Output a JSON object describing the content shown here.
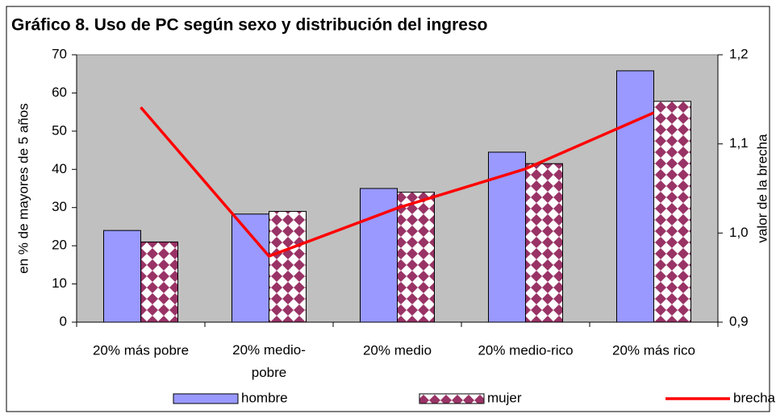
{
  "chart_data": {
    "type": "bar_line",
    "title": "Gráfico 8. Uso de PC según sexo y distribución del ingreso",
    "ylabel": "en % de mayores de 5 años",
    "y2label": "valor de la brecha",
    "categories": [
      "20% más pobre",
      "20% medio-pobre",
      "20% medio",
      "20% medio-rico",
      "20% más rico"
    ],
    "series": [
      {
        "name": "hombre",
        "color": "#9999ff",
        "type": "bar",
        "values": [
          24,
          28.3,
          35,
          44.5,
          65.8
        ]
      },
      {
        "name": "mujer",
        "color": "#993366",
        "type": "bar",
        "pattern": "diamond",
        "values": [
          21,
          29,
          34,
          41.5,
          57.8
        ]
      },
      {
        "name": "brecha",
        "color": "#ff0000",
        "type": "line",
        "axis": "y2",
        "values": [
          1.141,
          0.974,
          1.028,
          1.072,
          1.135
        ]
      }
    ],
    "ylim": [
      0,
      70
    ],
    "yticks": [
      0,
      10,
      20,
      30,
      40,
      50,
      60,
      70
    ],
    "y2lim": [
      0.9,
      1.2
    ],
    "y2ticks": [
      {
        "value": 0.9,
        "label": "0,9"
      },
      {
        "value": 1.0,
        "label": "1,0"
      },
      {
        "value": 1.1,
        "label": "1,1"
      },
      {
        "value": 1.2,
        "label": "1,2"
      }
    ],
    "plot_background": "#c0c0c0",
    "legend": "bottom"
  }
}
